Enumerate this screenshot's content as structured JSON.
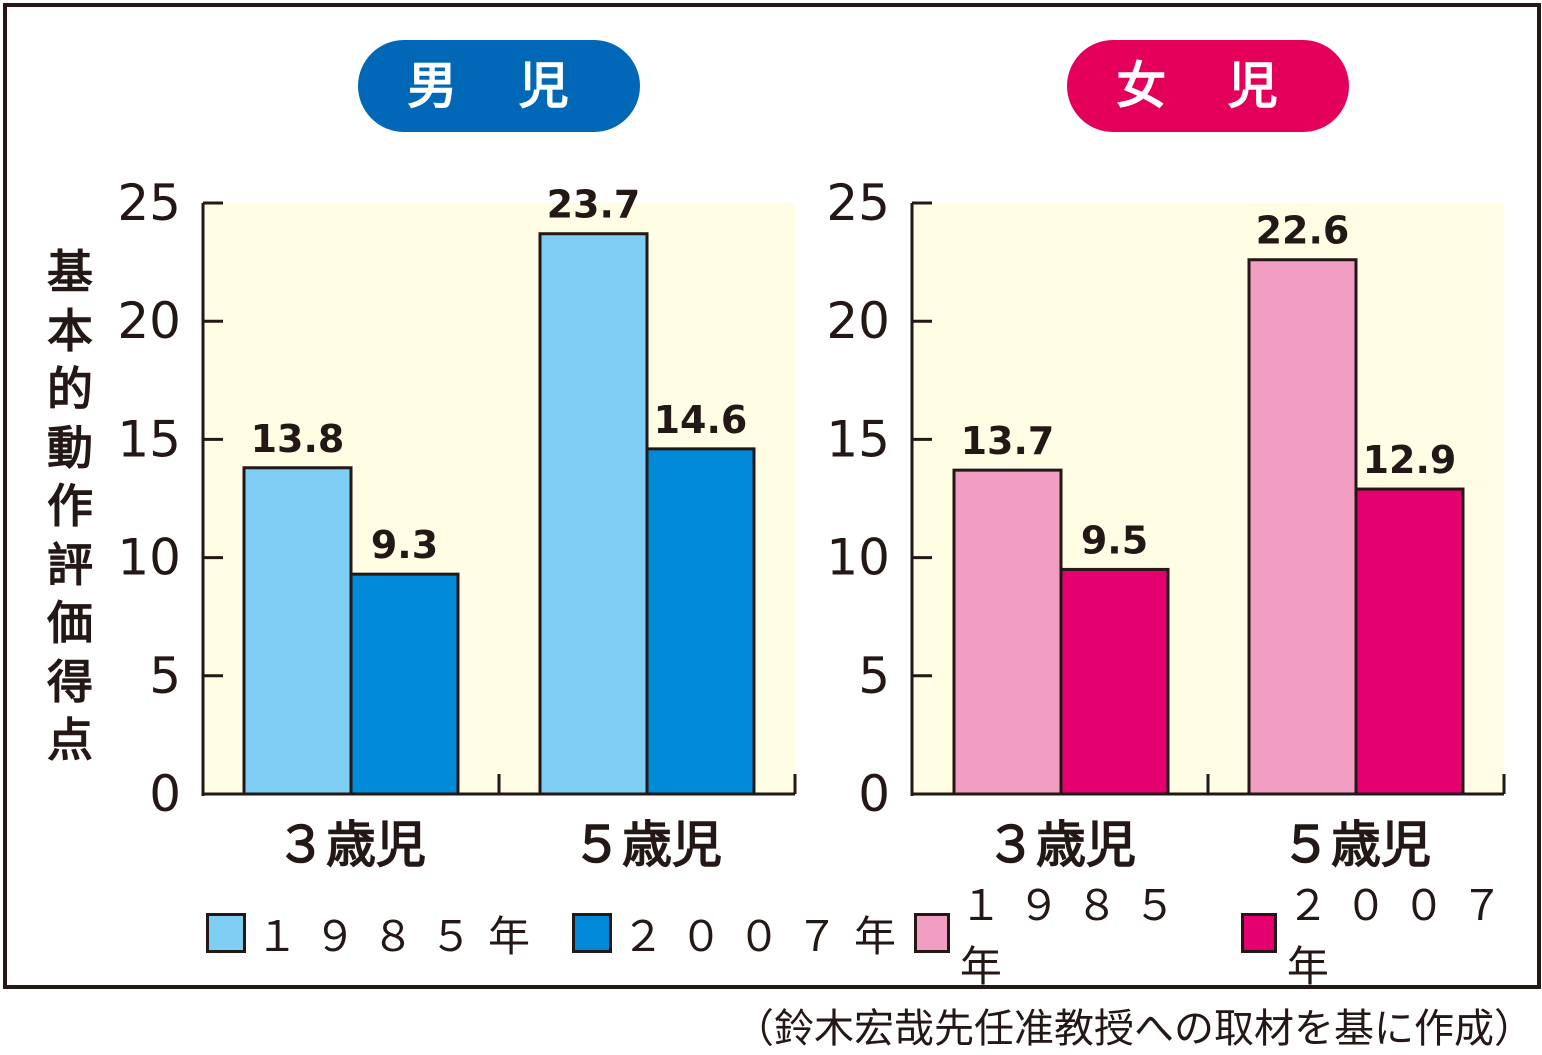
{
  "y_axis_label": "基本的動作評価得点",
  "source_note": "（鈴木宏哉先任准教授への取材を基に作成）",
  "colors": {
    "boys_1985": "#7ecef4",
    "boys_2007": "#0089d6",
    "girls_1985": "#f19ec2",
    "girls_2007": "#e4006e",
    "plot_bg": "#fffde3",
    "boys_badge": "#0068b7",
    "girls_badge": "#e4005a"
  },
  "chart_data": [
    {
      "type": "bar",
      "title": "男 児",
      "ylabel": "基本的動作評価得点",
      "categories": [
        "３歳児",
        "５歳児"
      ],
      "series": [
        {
          "name": "１９８５年",
          "values": [
            13.8,
            23.7
          ],
          "labels": [
            "13.8",
            "23.7"
          ]
        },
        {
          "name": "２００７年",
          "values": [
            9.3,
            14.6
          ],
          "labels": [
            "9.3",
            "14.6"
          ]
        }
      ],
      "ylim": [
        0,
        25
      ],
      "yticks": [
        "0",
        "5",
        "10",
        "15",
        "20",
        "25"
      ],
      "grid": false,
      "legend": "bottom"
    },
    {
      "type": "bar",
      "title": "女 児",
      "ylabel": "基本的動作評価得点",
      "categories": [
        "３歳児",
        "５歳児"
      ],
      "series": [
        {
          "name": "１９８５年",
          "values": [
            13.7,
            22.6
          ],
          "labels": [
            "13.7",
            "22.6"
          ]
        },
        {
          "name": "２００７年",
          "values": [
            9.5,
            12.9
          ],
          "labels": [
            "9.5",
            "12.9"
          ]
        }
      ],
      "ylim": [
        0,
        25
      ],
      "yticks": [
        "0",
        "5",
        "10",
        "15",
        "20",
        "25"
      ],
      "grid": false,
      "legend": "bottom"
    }
  ]
}
